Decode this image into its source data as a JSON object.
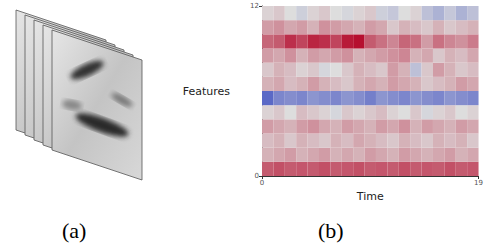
{
  "panel_labels": [
    "(a)",
    "(b)"
  ],
  "image_stack": {
    "frames": 5
  },
  "chart_data": {
    "type": "heatmap",
    "x_label": "Time",
    "y_label": "Features",
    "xlim": [
      0,
      19
    ],
    "xticks": [
      0,
      19
    ],
    "ylim": [
      0,
      12
    ],
    "yticks": [
      0,
      12
    ],
    "value_range": [
      -1,
      1
    ],
    "colors": [
      "#3b4cc0",
      "#dddddd",
      "#b40426"
    ],
    "cells": [
      [
        0.6,
        0.65,
        0.6,
        0.62,
        0.6,
        0.65,
        0.6,
        0.62,
        0.65,
        0.6,
        0.62,
        0.6,
        0.65,
        0.6,
        0.62,
        0.6,
        0.65,
        0.6,
        0.62
      ],
      [
        0.2,
        0.25,
        0.3,
        0.2,
        0.25,
        0.3,
        0.2,
        0.25,
        0.2,
        0.3,
        0.25,
        0.2,
        0.3,
        0.25,
        0.2,
        0.25,
        0.3,
        0.2,
        0.25
      ],
      [
        0.15,
        0.2,
        0.1,
        0.2,
        0.15,
        0.1,
        0.2,
        0.15,
        0.25,
        0.2,
        0.15,
        0.1,
        0.2,
        0.15,
        0.1,
        0.2,
        0.15,
        0.2,
        0.1
      ],
      [
        0.3,
        0.25,
        0.2,
        0.3,
        0.35,
        0.25,
        0.2,
        0.3,
        0.25,
        0.2,
        0.3,
        0.25,
        0.35,
        0.2,
        0.3,
        0.25,
        0.2,
        0.3,
        0.25
      ],
      [
        0.05,
        0.1,
        0,
        0.15,
        0.1,
        0.05,
        -0.05,
        0.1,
        0.05,
        0.1,
        0.15,
        0.05,
        0,
        0.1,
        -0.05,
        0.05,
        0.1,
        0,
        0.05
      ],
      [
        -0.8,
        -0.6,
        -0.55,
        -0.6,
        -0.5,
        -0.55,
        -0.6,
        -0.5,
        -0.55,
        -0.65,
        -0.5,
        -0.55,
        -0.6,
        -0.5,
        -0.55,
        -0.6,
        -0.5,
        -0.55,
        -0.6
      ],
      [
        0.2,
        0.25,
        0.15,
        0.2,
        0.3,
        0.2,
        0.15,
        0.1,
        0.2,
        0.25,
        0.2,
        0.3,
        0.25,
        0.2,
        0.1,
        0.15,
        0.2,
        0.3,
        0.25
      ],
      [
        0.1,
        0.2,
        0.15,
        0.05,
        0.1,
        -0.05,
        0,
        0.1,
        0.2,
        0.15,
        0.1,
        0.3,
        0.2,
        -0.2,
        0.1,
        0.3,
        0.2,
        0.1,
        0.15
      ],
      [
        0.3,
        0.25,
        0.35,
        0.2,
        0.3,
        0.25,
        0.3,
        0.35,
        0.2,
        0.25,
        0.3,
        0.35,
        0.4,
        0.2,
        0.25,
        0.1,
        0.2,
        0.15,
        0.25
      ],
      [
        0.55,
        0.6,
        0.8,
        0.7,
        0.85,
        0.8,
        0.7,
        0.9,
        0.95,
        0.6,
        0.5,
        0.4,
        0.55,
        0.5,
        0.3,
        0.5,
        0.4,
        0.35,
        0.45
      ],
      [
        0.3,
        0.35,
        0.25,
        0.3,
        0.2,
        0.35,
        0.3,
        0.25,
        0.2,
        0.3,
        0.25,
        0.1,
        0.2,
        0.15,
        0.1,
        0.2,
        0.1,
        0.15,
        0.2
      ],
      [
        0.05,
        0.1,
        0,
        -0.1,
        0.05,
        0.1,
        0,
        -0.05,
        0.05,
        0.1,
        -0.1,
        -0.15,
        0,
        0.05,
        -0.2,
        -0.3,
        -0.15,
        -0.3,
        -0.2
      ]
    ]
  }
}
